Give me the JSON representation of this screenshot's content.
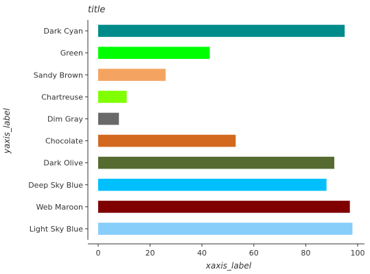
{
  "chart_data": {
    "type": "bar",
    "orientation": "horizontal",
    "title": "title",
    "xlabel": "xaxis_label",
    "ylabel": "yaxis_label",
    "xlim": [
      0,
      100
    ],
    "x_ticks": [
      0,
      20,
      40,
      60,
      80,
      100
    ],
    "grid": false,
    "categories": [
      "Light Sky Blue",
      "Web Maroon",
      "Deep Sky Blue",
      "Dark Olive",
      "Chocolate",
      "Dim Gray",
      "Chartreuse",
      "Sandy Brown",
      "Green",
      "Dark Cyan"
    ],
    "values": [
      98,
      97,
      88,
      91,
      53,
      8,
      11,
      26,
      43,
      95
    ],
    "colors": [
      "#87cefa",
      "#800000",
      "#00bfff",
      "#556b2f",
      "#d2691e",
      "#696969",
      "#7fff00",
      "#f4a460",
      "#00ff00",
      "#008b8b"
    ]
  }
}
